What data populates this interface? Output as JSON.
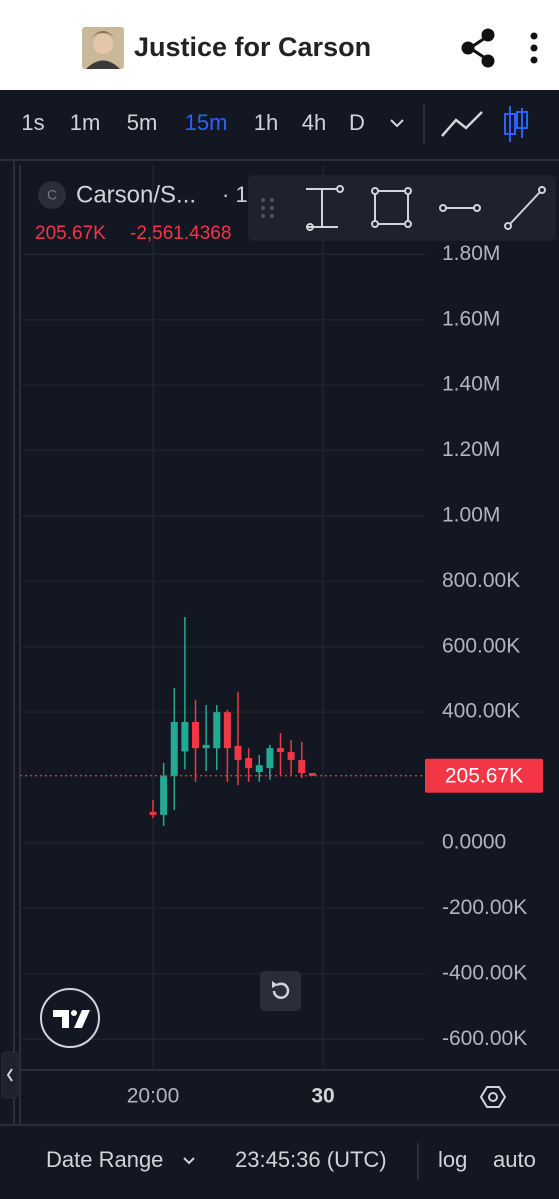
{
  "header": {
    "title": "Justice for Carson"
  },
  "toolbar": {
    "intervals": [
      "1s",
      "1m",
      "5m",
      "15m",
      "1h",
      "4h",
      "D"
    ],
    "active": 3,
    "active_color": "#2962ff"
  },
  "legend": {
    "symbol": "Carson/S...",
    "interval": "· 1",
    "change": "-2,561.4368"
  },
  "chart_data": {
    "type": "candlestick",
    "x": [
      20,
      20.25,
      20.5,
      20.75,
      21,
      21.25,
      21.5,
      21.75,
      22,
      22.25,
      22.5,
      22.75,
      23,
      23.25,
      23.5,
      23.75
    ],
    "open": [
      95000,
      86000,
      205000,
      280000,
      370000,
      290000,
      290000,
      400000,
      297000,
      260000,
      217000,
      229000,
      290000,
      278000,
      254000,
      214000
    ],
    "high": [
      131000,
      245000,
      474000,
      691000,
      437000,
      422000,
      422000,
      407000,
      462000,
      290000,
      269000,
      300000,
      336000,
      315000,
      309000,
      214000
    ],
    "low": [
      76000,
      52000,
      101000,
      225000,
      187000,
      220000,
      223000,
      187000,
      177000,
      187000,
      187000,
      193000,
      208000,
      208000,
      199000,
      205000
    ],
    "close": [
      86000,
      205000,
      370000,
      370000,
      290000,
      300000,
      400000,
      290000,
      254000,
      229000,
      238000,
      290000,
      278000,
      254000,
      214000,
      205670
    ],
    "up_color": "#22ab94",
    "down_color": "#f23645",
    "xlim": [
      16.87,
      26.4
    ],
    "xticks": [
      {
        "value": 20,
        "label": "20:00"
      },
      {
        "value": 24,
        "label": "30"
      }
    ],
    "ylim": [
      -694000,
      2073000
    ],
    "yticks": [
      {
        "value": 1800000,
        "label": "1.80M"
      },
      {
        "value": 1600000,
        "label": "1.60M"
      },
      {
        "value": 1400000,
        "label": "1.40M"
      },
      {
        "value": 1200000,
        "label": "1.20M"
      },
      {
        "value": 1000000,
        "label": "1.00M"
      },
      {
        "value": 800000,
        "label": "800.00K"
      },
      {
        "value": 600000,
        "label": "600.00K"
      },
      {
        "value": 400000,
        "label": "400.00K"
      },
      {
        "value": 0,
        "label": "0.0000"
      },
      {
        "value": -200000,
        "label": "-200.00K"
      },
      {
        "value": -400000,
        "label": "-400.00K"
      },
      {
        "value": -600000,
        "label": "-600.00K"
      }
    ],
    "grid": true,
    "last_price": {
      "value": 205670,
      "label": "205.67K"
    }
  },
  "footer": {
    "date_range": "Date Range",
    "time": "23:45:36 (UTC)",
    "log": "log",
    "auto": "auto"
  }
}
